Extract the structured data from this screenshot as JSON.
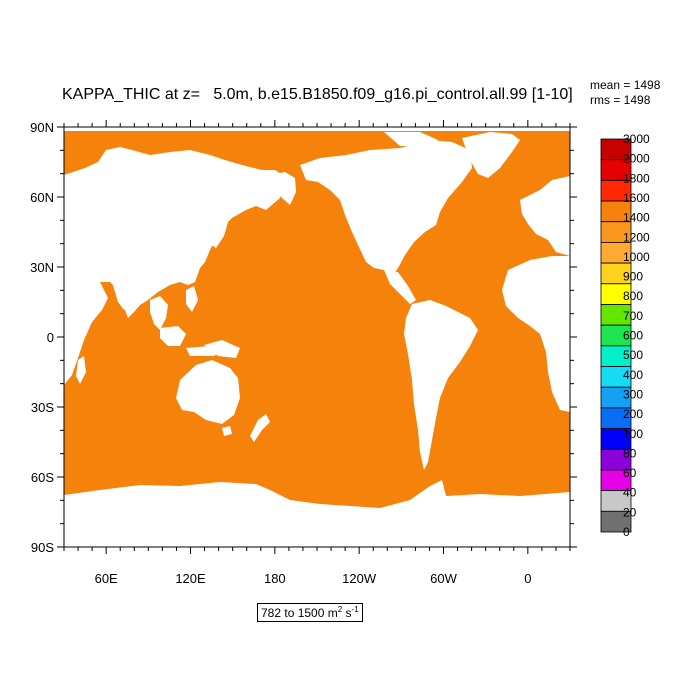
{
  "title": "KAPPA_THIC at z=   5.0m, b.e15.B1850.f09_g16.pi_control.all.99 [1-10]",
  "stats": {
    "mean": "mean = 1498",
    "rms": "rms = 1498"
  },
  "range": {
    "text": "782 to 1500 m",
    "unit_exp1": "2",
    "mid": " s",
    "unit_exp2": "-1"
  },
  "axes": {
    "lat_labels": [
      "90N",
      "60N",
      "30N",
      "0",
      "30S",
      "60S",
      "90S"
    ],
    "lon_labels": [
      "60E",
      "120E",
      "180",
      "120W",
      "60W",
      "0"
    ]
  },
  "colors": {
    "ocean": "#f5820a",
    "land": "#ffffff",
    "axis": "#000000"
  },
  "colorbar": {
    "labels": [
      "3000",
      "2000",
      "1800",
      "1600",
      "1400",
      "1200",
      "1000",
      "900",
      "800",
      "700",
      "600",
      "500",
      "400",
      "300",
      "200",
      "100",
      "80",
      "60",
      "40",
      "20",
      "0"
    ],
    "colors": [
      "#c80000",
      "#e60000",
      "#ff2800",
      "#f5820a",
      "#fa961e",
      "#ffaa32",
      "#ffd21e",
      "#ffff00",
      "#64e600",
      "#1ee650",
      "#00f0c8",
      "#14dcf5",
      "#14a0f5",
      "#0a6ef5",
      "#0000ff",
      "#8c00dc",
      "#e600e6",
      "#c8c8c8",
      "#707070"
    ]
  }
}
